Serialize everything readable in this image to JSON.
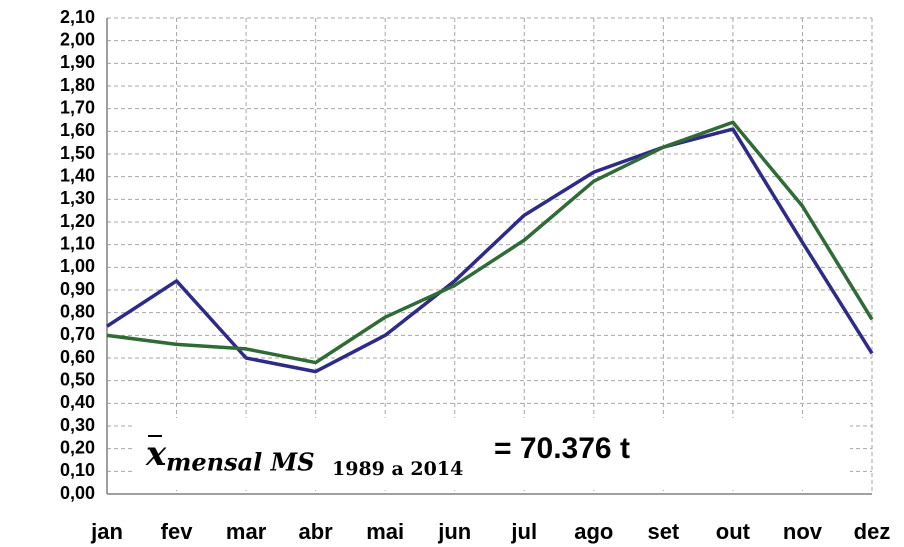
{
  "chart_data": {
    "type": "line",
    "categories": [
      "jan",
      "fev",
      "mar",
      "abr",
      "mai",
      "jun",
      "jul",
      "ago",
      "set",
      "out",
      "nov",
      "dez"
    ],
    "series": [
      {
        "color": "#2e2a8a",
        "values": [
          0.74,
          0.94,
          0.6,
          0.54,
          0.7,
          0.94,
          1.23,
          1.42,
          1.53,
          1.61,
          1.11,
          0.62
        ]
      },
      {
        "color": "#2f6b35",
        "values": [
          0.7,
          0.66,
          0.64,
          0.58,
          0.78,
          0.92,
          1.12,
          1.38,
          1.53,
          1.64,
          1.27,
          0.77
        ]
      }
    ],
    "ylim": [
      0,
      2.1
    ],
    "yticks": [
      {
        "value": 0,
        "label": "0,00"
      },
      {
        "value": 0.1,
        "label": "0,10"
      },
      {
        "value": 0.2,
        "label": "0,20"
      },
      {
        "value": 0.3,
        "label": "0,30"
      },
      {
        "value": 0.4,
        "label": "0,40"
      },
      {
        "value": 0.5,
        "label": "0,50"
      },
      {
        "value": 0.6,
        "label": "0,60"
      },
      {
        "value": 0.7,
        "label": "0,70"
      },
      {
        "value": 0.8,
        "label": "0,80"
      },
      {
        "value": 0.9,
        "label": "0,90"
      },
      {
        "value": 1.0,
        "label": "1,00"
      },
      {
        "value": 1.1,
        "label": "1,10"
      },
      {
        "value": 1.2,
        "label": "1,20"
      },
      {
        "value": 1.3,
        "label": "1,30"
      },
      {
        "value": 1.4,
        "label": "1,40"
      },
      {
        "value": 1.5,
        "label": "1,50"
      },
      {
        "value": 1.6,
        "label": "1,60"
      },
      {
        "value": 1.7,
        "label": "1,70"
      },
      {
        "value": 1.8,
        "label": "1,80"
      },
      {
        "value": 1.9,
        "label": "1,90"
      },
      {
        "value": 2.0,
        "label": "2,00"
      },
      {
        "value": 2.1,
        "label": "2,10"
      }
    ],
    "grid": true,
    "annotation": {
      "symbol": "x",
      "subscript": "mensal MS",
      "subscript_range": "1989 a 2014",
      "text": "= 70.376 t"
    }
  }
}
